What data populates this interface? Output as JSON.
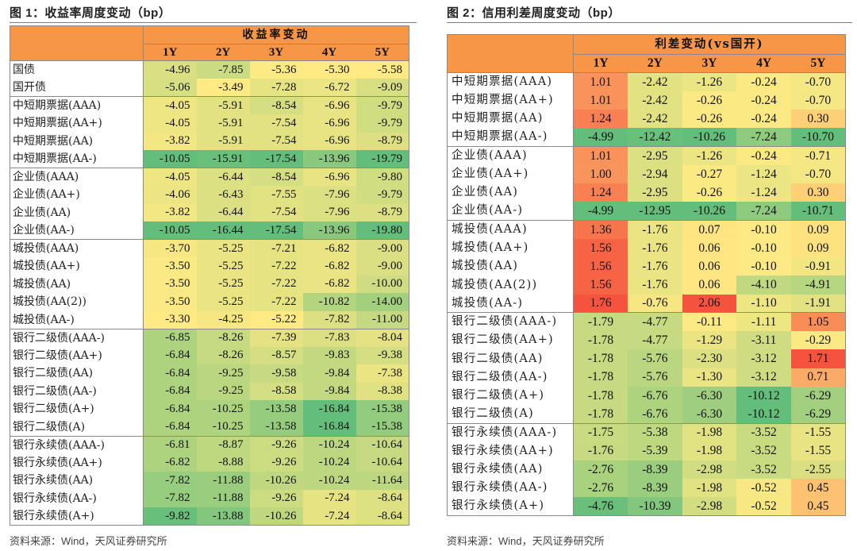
{
  "figure1": {
    "title": "图 1：收益率周度变动（bp）",
    "header_group": "收益率变动",
    "columns": [
      "1Y",
      "2Y",
      "3Y",
      "4Y",
      "5Y"
    ],
    "groups": [
      {
        "rows": [
          {
            "label": "国债",
            "values": [
              "-4.96",
              "-7.85",
              "-5.36",
              "-5.30",
              "-5.58"
            ]
          },
          {
            "label": "国开债",
            "values": [
              "-5.06",
              "-3.49",
              "-7.28",
              "-6.72",
              "-9.09"
            ]
          }
        ]
      },
      {
        "rows": [
          {
            "label": "中短期票据(AAA)",
            "values": [
              "-4.05",
              "-5.91",
              "-8.54",
              "-6.96",
              "-9.79"
            ]
          },
          {
            "label": "中短期票据(AA+)",
            "values": [
              "-4.05",
              "-5.91",
              "-7.54",
              "-6.96",
              "-9.79"
            ]
          },
          {
            "label": "中短期票据(AA)",
            "values": [
              "-3.82",
              "-5.91",
              "-7.54",
              "-6.96",
              "-8.79"
            ]
          },
          {
            "label": "中短期票据(AA-)",
            "values": [
              "-10.05",
              "-15.91",
              "-17.54",
              "-13.96",
              "-19.79"
            ]
          }
        ]
      },
      {
        "rows": [
          {
            "label": "企业债(AAA)",
            "values": [
              "-4.05",
              "-6.44",
              "-8.54",
              "-6.96",
              "-9.80"
            ]
          },
          {
            "label": "企业债(AA+)",
            "values": [
              "-4.06",
              "-6.43",
              "-7.55",
              "-7.96",
              "-9.79"
            ]
          },
          {
            "label": "企业债(AA)",
            "values": [
              "-3.82",
              "-6.44",
              "-7.54",
              "-7.96",
              "-8.79"
            ]
          },
          {
            "label": "企业债(AA-)",
            "values": [
              "-10.05",
              "-16.44",
              "-17.54",
              "-13.96",
              "-19.80"
            ]
          }
        ]
      },
      {
        "rows": [
          {
            "label": "城投债(AAA)",
            "values": [
              "-3.70",
              "-5.25",
              "-7.21",
              "-6.82",
              "-9.00"
            ]
          },
          {
            "label": "城投债(AA+)",
            "values": [
              "-3.50",
              "-5.25",
              "-7.22",
              "-6.82",
              "-9.00"
            ]
          },
          {
            "label": "城投债(AA)",
            "values": [
              "-3.50",
              "-5.25",
              "-7.22",
              "-6.82",
              "-10.00"
            ]
          },
          {
            "label": "城投债(AA(2))",
            "values": [
              "-3.50",
              "-5.25",
              "-7.22",
              "-10.82",
              "-14.00"
            ]
          },
          {
            "label": "城投债(AA-)",
            "values": [
              "-3.30",
              "-4.25",
              "-5.22",
              "-7.82",
              "-11.00"
            ]
          }
        ]
      },
      {
        "rows": [
          {
            "label": "银行二级债(AAA-)",
            "values": [
              "-6.85",
              "-8.26",
              "-7.39",
              "-7.83",
              "-8.04"
            ]
          },
          {
            "label": "银行二级债(AA+)",
            "values": [
              "-6.84",
              "-8.26",
              "-8.57",
              "-9.83",
              "-9.38"
            ]
          },
          {
            "label": "银行二级债(AA)",
            "values": [
              "-6.84",
              "-9.25",
              "-9.58",
              "-9.84",
              "-7.38"
            ]
          },
          {
            "label": "银行二级债(AA-)",
            "values": [
              "-6.84",
              "-9.25",
              "-8.58",
              "-9.84",
              "-8.38"
            ]
          },
          {
            "label": "银行二级债(A+)",
            "values": [
              "-6.84",
              "-10.25",
              "-13.58",
              "-16.84",
              "-15.38"
            ]
          },
          {
            "label": "银行二级债(A)",
            "values": [
              "-6.84",
              "-10.25",
              "-13.58",
              "-16.84",
              "-15.38"
            ]
          }
        ]
      },
      {
        "rows": [
          {
            "label": "银行永续债(AAA-)",
            "values": [
              "-6.81",
              "-8.87",
              "-9.26",
              "-10.24",
              "-10.64"
            ]
          },
          {
            "label": "银行永续债(AA+)",
            "values": [
              "-6.82",
              "-8.88",
              "-9.26",
              "-10.24",
              "-10.64"
            ]
          },
          {
            "label": "银行永续债(AA)",
            "values": [
              "-7.82",
              "-11.88",
              "-10.26",
              "-10.24",
              "-11.64"
            ]
          },
          {
            "label": "银行永续债(AA-)",
            "values": [
              "-7.82",
              "-11.88",
              "-9.26",
              "-7.24",
              "-8.64"
            ]
          },
          {
            "label": "银行永续债(A+)",
            "values": [
              "-9.82",
              "-13.88",
              "-10.26",
              "-7.24",
              "-8.64"
            ]
          }
        ]
      }
    ],
    "source": "资料来源：Wind，天风证券研究所"
  },
  "figure2": {
    "title": "图 2：信用利差周度变动（bp）",
    "header_group": "利差变动(vs国开)",
    "columns": [
      "1Y",
      "2Y",
      "3Y",
      "4Y",
      "5Y"
    ],
    "groups": [
      {
        "rows": [
          {
            "label": "中短期票据(AAA)",
            "values": [
              "1.01",
              "-2.42",
              "-1.26",
              "-0.24",
              "-0.70"
            ]
          },
          {
            "label": "中短期票据(AA+)",
            "values": [
              "1.01",
              "-2.42",
              "-0.26",
              "-0.24",
              "-0.70"
            ]
          },
          {
            "label": "中短期票据(AA)",
            "values": [
              "1.24",
              "-2.42",
              "-0.26",
              "-0.24",
              "0.30"
            ]
          },
          {
            "label": "中短期票据(AA-)",
            "values": [
              "-4.99",
              "-12.42",
              "-10.26",
              "-7.24",
              "-10.70"
            ]
          }
        ]
      },
      {
        "rows": [
          {
            "label": "企业债(AAA)",
            "values": [
              "1.01",
              "-2.95",
              "-1.26",
              "-0.24",
              "-0.71"
            ]
          },
          {
            "label": "企业债(AA+)",
            "values": [
              "1.00",
              "-2.94",
              "-0.27",
              "-1.24",
              "-0.70"
            ]
          },
          {
            "label": "企业债(AA)",
            "values": [
              "1.24",
              "-2.95",
              "-0.26",
              "-1.24",
              "0.30"
            ]
          },
          {
            "label": "企业债(AA-)",
            "values": [
              "-4.99",
              "-12.95",
              "-10.26",
              "-7.24",
              "-10.71"
            ]
          }
        ]
      },
      {
        "rows": [
          {
            "label": "城投债(AAA)",
            "values": [
              "1.36",
              "-1.76",
              "0.07",
              "-0.10",
              "0.09"
            ]
          },
          {
            "label": "城投债(AA+)",
            "values": [
              "1.56",
              "-1.76",
              "0.06",
              "-0.10",
              "0.09"
            ]
          },
          {
            "label": "城投债(AA)",
            "values": [
              "1.56",
              "-1.76",
              "0.06",
              "-0.10",
              "-0.91"
            ]
          },
          {
            "label": "城投债(AA(2))",
            "values": [
              "1.56",
              "-1.76",
              "0.06",
              "-4.10",
              "-4.91"
            ]
          },
          {
            "label": "城投债(AA-)",
            "values": [
              "1.76",
              "-0.76",
              "2.06",
              "-1.10",
              "-1.91"
            ]
          }
        ]
      },
      {
        "rows": [
          {
            "label": "银行二级债(AAA-)",
            "values": [
              "-1.79",
              "-4.77",
              "-0.11",
              "-1.11",
              "1.05"
            ]
          },
          {
            "label": "银行二级债(AA+)",
            "values": [
              "-1.78",
              "-4.77",
              "-1.29",
              "-3.11",
              "-0.29"
            ]
          },
          {
            "label": "银行二级债(AA)",
            "values": [
              "-1.78",
              "-5.76",
              "-2.30",
              "-3.12",
              "1.71"
            ]
          },
          {
            "label": "银行二级债(AA-)",
            "values": [
              "-1.78",
              "-5.76",
              "-1.30",
              "-3.12",
              "0.71"
            ]
          },
          {
            "label": "银行二级债(A+)",
            "values": [
              "-1.78",
              "-6.76",
              "-6.30",
              "-10.12",
              "-6.29"
            ]
          },
          {
            "label": "银行二级债(A)",
            "values": [
              "-1.78",
              "-6.76",
              "-6.30",
              "-10.12",
              "-6.29"
            ]
          }
        ]
      },
      {
        "rows": [
          {
            "label": "银行永续债(AAA-)",
            "values": [
              "-1.75",
              "-5.38",
              "-1.98",
              "-3.52",
              "-1.55"
            ]
          },
          {
            "label": "银行永续债(AA+)",
            "values": [
              "-1.76",
              "-5.39",
              "-1.98",
              "-3.52",
              "-1.55"
            ]
          },
          {
            "label": "银行永续债(AA)",
            "values": [
              "-2.76",
              "-8.39",
              "-2.98",
              "-3.52",
              "-2.55"
            ]
          },
          {
            "label": "银行永续债(AA-)",
            "values": [
              "-2.76",
              "-8.39",
              "-1.98",
              "-0.52",
              "0.45"
            ]
          },
          {
            "label": "银行永续债(A+)",
            "values": [
              "-4.76",
              "-10.39",
              "-2.98",
              "-0.52",
              "0.45"
            ]
          }
        ]
      }
    ],
    "source": "资料来源：Wind，天风证券研究所"
  },
  "colors": {
    "header": "#F79646",
    "green": "#63BE7B",
    "yellow": "#FFEA84",
    "red": "#F5533D"
  }
}
